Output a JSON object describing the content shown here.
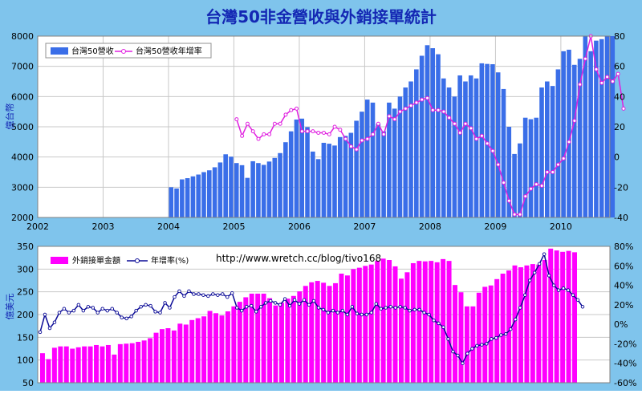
{
  "title": "台灣50非金營收與外銷接單統計",
  "colors": {
    "background": "#7fc4ec",
    "plot": "#ffffff",
    "title": "#1428b4",
    "axis_label": "#1428b4",
    "bar_top": "#3a6ee8",
    "bar_bottom": "#ff00ff",
    "line_top": "#e020e0",
    "line_bottom": "#0a0a96",
    "grid": "#c8c8c8"
  },
  "chart_data": [
    {
      "type": "bar",
      "ylabel": "億台幣",
      "ylim": [
        2000,
        8000
      ],
      "y2lim": [
        -40,
        80
      ],
      "yticks": [
        "2000",
        "3000",
        "4000",
        "5000",
        "6000",
        "7000",
        "8000"
      ],
      "y2ticks": [
        "-40",
        "-20",
        "0",
        "20",
        "40",
        "60",
        "80"
      ],
      "xlim": [
        2002,
        2010.75
      ],
      "xticks": [
        "2002",
        "2003",
        "2004",
        "2005",
        "2006",
        "2007",
        "2008",
        "2009",
        "2010"
      ],
      "grid": true,
      "legend_position": "top-left",
      "series": [
        {
          "name": "台灣50營收",
          "start": 2004.0,
          "values": [
            3000,
            2960,
            3260,
            3300,
            3360,
            3420,
            3500,
            3560,
            3660,
            3820,
            4090,
            4010,
            3800,
            3730,
            3310,
            3860,
            3800,
            3740,
            3850,
            3970,
            4130,
            4490,
            4850,
            5240,
            5270,
            4990,
            4180,
            3930,
            4470,
            4440,
            4380,
            4660,
            4700,
            4800,
            5200,
            5500,
            5900,
            5800,
            5100,
            4850,
            5800,
            5600,
            6000,
            6300,
            6500,
            6900,
            7350,
            7700,
            7600,
            7400,
            6600,
            6300,
            6000,
            6700,
            6500,
            6700,
            6600,
            7100,
            7080,
            7070,
            6800,
            6250,
            5000,
            4100,
            4450,
            5300,
            5250,
            5300,
            6300,
            6500,
            6350,
            6900,
            7500,
            7550,
            7050,
            7250,
            8100,
            7500,
            7850,
            7900,
            8050,
            8050
          ]
        },
        {
          "name": "台灣50營收年增率",
          "start": 2005.0,
          "values": [
            25,
            14,
            22,
            17,
            12,
            15,
            15,
            22,
            22,
            28,
            31,
            32,
            17,
            17,
            17,
            16,
            16,
            15,
            20,
            18,
            12,
            7,
            5,
            11,
            12,
            15,
            22,
            15,
            27,
            25,
            30,
            32,
            34,
            36,
            38,
            39,
            31,
            31,
            30,
            26,
            22,
            16,
            22,
            19,
            12,
            14,
            9,
            4,
            -5,
            -17,
            -29,
            -38,
            -38,
            -26,
            -21,
            -18,
            -19,
            -10,
            -10,
            -5,
            -1,
            10,
            24,
            48,
            65,
            81,
            58,
            49,
            53,
            50,
            55,
            32
          ]
        }
      ]
    },
    {
      "type": "bar",
      "ylabel": "億美元",
      "ylim": [
        50,
        350
      ],
      "y2lim": [
        -60,
        80
      ],
      "yticks": [
        "50",
        "100",
        "150",
        "200",
        "250",
        "300",
        "350"
      ],
      "y2ticks": [
        "-60%",
        "-40%",
        "-20%",
        "0%",
        "20%",
        "40%",
        "60%",
        "80%"
      ],
      "annotation": "http://www.wretch.cc/blog/tivo168",
      "legend_position": "top-left",
      "series": [
        {
          "name": "外銷接單金額",
          "values": [
            115,
            102,
            127,
            130,
            130,
            125,
            128,
            130,
            130,
            133,
            130,
            133,
            112,
            135,
            136,
            137,
            140,
            143,
            148,
            160,
            168,
            170,
            165,
            180,
            178,
            188,
            192,
            196,
            208,
            203,
            198,
            207,
            218,
            228,
            238,
            246,
            246,
            246,
            236,
            220,
            226,
            235,
            241,
            251,
            263,
            271,
            274,
            270,
            263,
            269,
            290,
            286,
            300,
            303,
            307,
            310,
            318,
            323,
            320,
            306,
            279,
            293,
            313,
            318,
            317,
            318,
            315,
            322,
            318,
            265,
            249,
            218,
            218,
            248,
            261,
            264,
            278,
            290,
            297,
            308,
            304,
            308,
            311,
            310,
            320,
            345,
            341,
            338,
            340,
            337
          ]
        },
        {
          "name": "年增率(%)",
          "values": [
            -8,
            10,
            -4,
            2,
            12,
            16,
            12,
            14,
            20,
            14,
            18,
            17,
            12,
            16,
            14,
            16,
            12,
            7,
            6,
            8,
            14,
            18,
            20,
            19,
            13,
            12,
            22,
            17,
            28,
            34,
            29,
            34,
            31,
            31,
            30,
            29,
            31,
            30,
            31,
            28,
            32,
            17,
            14,
            18,
            19,
            13,
            18,
            22,
            24,
            22,
            20,
            26,
            19,
            25,
            21,
            25,
            20,
            24,
            17,
            15,
            12,
            14,
            12,
            14,
            10,
            18,
            11,
            10,
            10,
            12,
            21,
            16,
            17,
            18,
            17,
            18,
            17,
            14,
            15,
            15,
            12,
            10,
            4,
            1,
            -3,
            -15,
            -28,
            -32,
            -40,
            -30,
            -25,
            -22,
            -21,
            -20,
            -15,
            -14,
            -11,
            -10,
            -5,
            5,
            17,
            30,
            45,
            53,
            62,
            72,
            50,
            40,
            35,
            37,
            35,
            30,
            25,
            18
          ]
        }
      ]
    }
  ]
}
